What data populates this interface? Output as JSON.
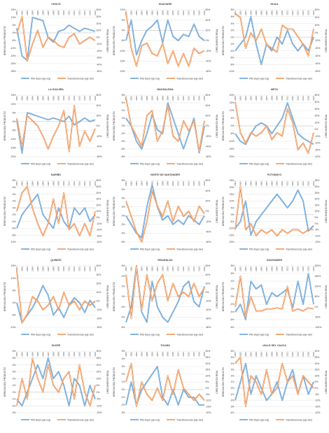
{
  "common": {
    "years": [
      "2001",
      "2002",
      "2003",
      "2004",
      "2005",
      "2006",
      "2007",
      "2008",
      "2009",
      "2010",
      "2011",
      "2012",
      "2013",
      "2014",
      "2015",
      "2016"
    ],
    "legend_left": "PIB Dept (eje izq)",
    "legend_right": "Transferencias (eje der)",
    "ylabel_left": "BRECHA DEL PRODUCTO",
    "ylabel_right": "CRECIMIENTO REAL",
    "colors": {
      "pib": "#5b9bd5",
      "transfer": "#ed7d31",
      "grid": "#d9d9d9",
      "text": "#404040"
    }
  },
  "chart_data": [
    {
      "type": "line",
      "title": "CHOCÓ",
      "left_ticks": [
        "15%",
        "10%",
        "5%",
        "0%",
        "-5%",
        "-10%",
        "-15%",
        "-20%",
        "-25%"
      ],
      "right_ticks": [
        "40%",
        "30%",
        "20%",
        "10%",
        "0%",
        "-10%",
        "-20%",
        "-30%",
        "-40%",
        "-50%"
      ],
      "ylim_left": [
        -25,
        15
      ],
      "ylim_right": [
        -50,
        40
      ],
      "series": [
        {
          "name": "PIB Dept (eje izq)",
          "values": [
            3,
            -15,
            -18,
            10,
            9,
            8,
            -3,
            -6,
            1,
            2,
            5,
            3,
            1,
            3,
            2,
            1
          ]
        },
        {
          "name": "Transferencias (eje der)",
          "values": [
            5,
            30,
            -35,
            -10,
            10,
            -15,
            0,
            -5,
            -12,
            -15,
            0,
            5,
            -10,
            -5,
            0,
            -5
          ]
        }
      ]
    },
    {
      "type": "line",
      "title": "GUAVIARE",
      "left_ticks": [
        "10%",
        "5%",
        "0%",
        "-5%",
        "-10%",
        "-15%",
        "-20%"
      ],
      "right_ticks": [
        "60%",
        "40%",
        "20%",
        "0%",
        "-20%",
        "-40%",
        "-60%"
      ],
      "ylim_left": [
        -20,
        10
      ],
      "ylim_right": [
        -60,
        60
      ],
      "series": [
        {
          "name": "PIB Dept (eje izq)",
          "values": [
            -5,
            5,
            -12,
            -5,
            0,
            2,
            5,
            -6,
            5,
            -3,
            -5,
            -2,
            -3,
            3,
            -3,
            -5
          ]
        },
        {
          "name": "Transferencias (eje der)",
          "values": [
            55,
            -15,
            -50,
            -10,
            -5,
            -25,
            -30,
            -5,
            -45,
            -20,
            -50,
            -25,
            -50,
            -15,
            -25,
            -20
          ]
        }
      ]
    },
    {
      "type": "line",
      "title": "HUILA",
      "left_ticks": [
        "8%",
        "6%",
        "4%",
        "2%",
        "0%",
        "-2%",
        "-4%",
        "-6%",
        "-8%",
        "-10%"
      ],
      "right_ticks": [
        "30%",
        "20%",
        "10%",
        "0%",
        "-10%",
        "-20%",
        "-30%",
        "-40%",
        "-50%"
      ],
      "ylim_left": [
        -10,
        8
      ],
      "ylim_right": [
        -50,
        30
      ],
      "series": [
        {
          "name": "PIB Dept (eje izq)",
          "values": [
            -4,
            -2,
            0,
            6,
            -2,
            -8,
            -2,
            -4,
            0,
            -2,
            2,
            -2,
            -4,
            -2,
            -4,
            0
          ]
        },
        {
          "name": "Transferencias (eje der)",
          "values": [
            25,
            20,
            -20,
            0,
            -10,
            5,
            -15,
            -20,
            -25,
            10,
            5,
            5,
            -5,
            -15,
            -30,
            5
          ]
        }
      ]
    },
    {
      "type": "line",
      "title": "LA GUAJIRA",
      "left_ticks": [
        "15%",
        "10%",
        "5%",
        "0%",
        "-5%",
        "-10%",
        "-15%",
        "-20%"
      ],
      "right_ticks": [
        "60%",
        "40%",
        "20%",
        "0%",
        "-20%",
        "-40%",
        "-60%"
      ],
      "ylim_left": [
        -20,
        15
      ],
      "ylim_right": [
        -60,
        60
      ],
      "series": [
        {
          "name": "PIB Dept (eje izq)",
          "values": [
            1,
            -18,
            5,
            4,
            3,
            2,
            1,
            2,
            1,
            0,
            3,
            -2,
            0,
            2,
            0,
            1
          ]
        },
        {
          "name": "Transferencias (eje der)",
          "values": [
            15,
            -40,
            20,
            10,
            0,
            -20,
            -45,
            -20,
            0,
            30,
            -50,
            40,
            -40,
            -10,
            -30,
            -5
          ]
        }
      ]
    },
    {
      "type": "line",
      "title": "MAGDALENA",
      "left_ticks": [
        "8%",
        "6%",
        "4%",
        "2%",
        "0%",
        "-2%",
        "-4%",
        "-6%",
        "-8%"
      ],
      "right_ticks": [
        "60%",
        "40%",
        "20%",
        "0%",
        "-20%",
        "-40%",
        "-60%"
      ],
      "ylim_left": [
        -8,
        8
      ],
      "ylim_right": [
        -60,
        60
      ],
      "series": [
        {
          "name": "PIB Dept (eje izq)",
          "values": [
            2,
            0,
            -4,
            -6,
            -2,
            3,
            -1,
            -2,
            6,
            2,
            -2,
            -6,
            -2,
            2,
            -7,
            0
          ]
        },
        {
          "name": "Transferencias (eje der)",
          "values": [
            55,
            0,
            -20,
            -40,
            20,
            30,
            -30,
            -10,
            40,
            -20,
            -30,
            10,
            -10,
            10,
            -50,
            10
          ]
        }
      ]
    },
    {
      "type": "line",
      "title": "META",
      "left_ticks": [
        "20%",
        "15%",
        "10%",
        "5%",
        "0%",
        "-5%",
        "-10%",
        "-15%",
        "-20%"
      ],
      "right_ticks": [
        "50%",
        "40%",
        "30%",
        "20%",
        "10%",
        "0%",
        "-10%",
        "-20%",
        "-30%",
        "-40%"
      ],
      "ylim_left": [
        -20,
        20
      ],
      "ylim_right": [
        -40,
        50
      ],
      "series": [
        {
          "name": "PIB Dept (eje izq)",
          "values": [
            -5,
            -10,
            -12,
            -5,
            0,
            2,
            0,
            -5,
            0,
            5,
            15,
            5,
            -5,
            -8,
            -10,
            -12
          ]
        },
        {
          "name": "Transferencias (eje der)",
          "values": [
            40,
            -5,
            -20,
            -5,
            -10,
            -5,
            5,
            -15,
            -5,
            -10,
            30,
            10,
            -30,
            -20,
            -35,
            -5
          ]
        }
      ]
    },
    {
      "type": "line",
      "title": "NARIÑO",
      "left_ticks": [
        "8%",
        "6%",
        "4%",
        "2%",
        "0%",
        "-2%",
        "-4%",
        "-6%",
        "-8%",
        "-10%"
      ],
      "right_ticks": [
        "60%",
        "50%",
        "40%",
        "30%",
        "20%",
        "10%",
        "0%",
        "-10%",
        "-20%",
        "-30%",
        "-40%"
      ],
      "ylim_left": [
        -10,
        8
      ],
      "ylim_right": [
        -40,
        60
      ],
      "series": [
        {
          "name": "PIB Dept (eje izq)",
          "values": [
            -6,
            -2,
            0,
            2,
            4,
            -2,
            -4,
            -6,
            0,
            -4,
            -6,
            0,
            -2,
            0,
            -4,
            -2
          ]
        },
        {
          "name": "Transferencias (eje der)",
          "values": [
            10,
            40,
            50,
            15,
            -10,
            -30,
            -10,
            30,
            -10,
            40,
            -20,
            -10,
            -30,
            -10,
            -30,
            10
          ]
        }
      ]
    },
    {
      "type": "line",
      "title": "NORTE DE SANTANDER",
      "left_ticks": [
        "8%",
        "6%",
        "4%",
        "2%",
        "0%",
        "-2%",
        "-4%",
        "-6%"
      ],
      "right_ticks": [
        "60%",
        "40%",
        "20%",
        "0%",
        "-20%",
        "-40%",
        "-60%"
      ],
      "ylim_left": [
        -6,
        8
      ],
      "ylim_right": [
        -60,
        60
      ],
      "series": [
        {
          "name": "PIB Dept (eje izq)",
          "values": [
            0,
            -2,
            -4,
            -5,
            2,
            7,
            2,
            -1,
            0,
            -2,
            -1,
            -2,
            0,
            -1,
            -2,
            0
          ]
        },
        {
          "name": "Transferencias (eje der)",
          "values": [
            20,
            -10,
            -40,
            -60,
            -20,
            40,
            10,
            -10,
            20,
            -20,
            10,
            -10,
            0,
            -20,
            10,
            -5
          ]
        }
      ]
    },
    {
      "type": "line",
      "title": "PUTUMAYO",
      "left_ticks": [
        "25%",
        "20%",
        "15%",
        "10%",
        "5%",
        "0%",
        "-5%",
        "-10%",
        "-15%",
        "-20%"
      ],
      "right_ticks": [
        "35%",
        "30%",
        "25%",
        "20%",
        "15%",
        "10%",
        "5%",
        "0%",
        "-5%",
        "-10%",
        "-15%"
      ],
      "ylim_left": [
        -20,
        25
      ],
      "ylim_right": [
        -15,
        35
      ],
      "series": [
        {
          "name": "PIB Dept (eje izq)",
          "values": [
            -10,
            -5,
            10,
            -15,
            -5,
            0,
            5,
            10,
            15,
            10,
            5,
            10,
            18,
            10,
            -12,
            -8
          ]
        },
        {
          "name": "Transferencias (eje der)",
          "values": [
            -5,
            30,
            -5,
            0,
            -10,
            -5,
            -8,
            -5,
            -10,
            -5,
            -8,
            -5,
            -5,
            -8,
            -5,
            -5
          ]
        }
      ]
    },
    {
      "type": "line",
      "title": "QUINDÍO",
      "left_ticks": [
        "15%",
        "10%",
        "5%",
        "0%",
        "-5%",
        "-10%"
      ],
      "right_ticks": [
        "40%",
        "30%",
        "20%",
        "10%",
        "0%",
        "-10%",
        "-20%",
        "-30%"
      ],
      "ylim_left": [
        -10,
        15
      ],
      "ylim_right": [
        -30,
        40
      ],
      "series": [
        {
          "name": "PIB Dept (eje izq)",
          "values": [
            0,
            -8,
            -5,
            -2,
            2,
            7,
            3,
            -5,
            -2,
            -6,
            -1,
            2,
            0,
            -4,
            1,
            -2
          ]
        },
        {
          "name": "Transferencias (eje der)",
          "values": [
            35,
            -25,
            -15,
            5,
            0,
            -10,
            -5,
            5,
            -10,
            10,
            -5,
            0,
            -10,
            0,
            -5,
            0
          ]
        }
      ]
    },
    {
      "type": "line",
      "title": "RISARALDA",
      "left_ticks": [
        "6%",
        "4%",
        "2%",
        "0%",
        "-2%",
        "-4%",
        "-6%"
      ],
      "right_ticks": [
        "60%",
        "40%",
        "20%",
        "0%",
        "-20%",
        "-40%",
        "-60%",
        "-80%"
      ],
      "ylim_left": [
        -6,
        6
      ],
      "ylim_right": [
        -80,
        60
      ],
      "series": [
        {
          "name": "PIB Dept (eje izq)",
          "values": [
            -5,
            -2,
            6,
            -3,
            -5,
            3,
            -2,
            -4,
            -5,
            -3,
            -1,
            2,
            3,
            -1,
            -2,
            2
          ]
        },
        {
          "name": "Transferencias (eje der)",
          "values": [
            40,
            -60,
            60,
            -40,
            40,
            -20,
            20,
            40,
            -20,
            20,
            -10,
            0,
            -10,
            20,
            -10,
            10
          ]
        }
      ]
    },
    {
      "type": "line",
      "title": "SANTANDER",
      "left_ticks": [
        "8%",
        "6%",
        "4%",
        "2%",
        "0%",
        "-2%",
        "-4%",
        "-6%",
        "-8%"
      ],
      "right_ticks": [
        "200%",
        "150%",
        "100%",
        "50%",
        "0%",
        "-50%",
        "-100%"
      ],
      "ylim_left": [
        -8,
        8
      ],
      "ylim_right": [
        -100,
        200
      ],
      "series": [
        {
          "name": "PIB Dept (eje izq)",
          "values": [
            -4,
            -2,
            -6,
            4,
            2,
            3,
            -2,
            1,
            0,
            1,
            2,
            -3,
            4,
            -2,
            6,
            -2
          ]
        },
        {
          "name": "Transferencias (eje der)",
          "values": [
            0,
            150,
            -50,
            50,
            -20,
            -20,
            -10,
            -10,
            -5,
            -10,
            100,
            -20,
            -10,
            -20,
            -5,
            -10
          ]
        }
      ]
    },
    {
      "type": "line",
      "title": "SUCRE",
      "left_ticks": [
        "6%",
        "5%",
        "4%",
        "3%",
        "2%",
        "1%",
        "0%",
        "-1%",
        "-2%",
        "-3%"
      ],
      "right_ticks": [
        "30%",
        "25%",
        "20%",
        "15%",
        "10%",
        "5%",
        "0%",
        "-5%",
        "-10%",
        "-15%"
      ],
      "ylim_left": [
        -3,
        6
      ],
      "ylim_right": [
        -15,
        30
      ],
      "series": [
        {
          "name": "PIB Dept (eje izq)",
          "values": [
            -1,
            -2,
            0,
            2,
            4,
            2,
            5,
            2,
            3,
            1,
            -2,
            2,
            1,
            -2,
            1,
            -1
          ]
        },
        {
          "name": "Transferencias (eje der)",
          "values": [
            -10,
            10,
            -5,
            25,
            10,
            0,
            20,
            5,
            0,
            10,
            15,
            -5,
            20,
            0,
            -10,
            5
          ]
        }
      ]
    },
    {
      "type": "line",
      "title": "TOLIMA",
      "left_ticks": [
        "5%",
        "4%",
        "3%",
        "2%",
        "1%",
        "0%",
        "-1%",
        "-2%",
        "-3%"
      ],
      "right_ticks": [
        "30%",
        "25%",
        "20%",
        "15%",
        "10%",
        "5%",
        "0%",
        "-5%",
        "-10%",
        "-15%",
        "-20%"
      ],
      "ylim_left": [
        -3,
        5
      ],
      "ylim_right": [
        -20,
        30
      ],
      "series": [
        {
          "name": "PIB Dept (eje izq)",
          "values": [
            -2,
            1,
            -2,
            0,
            1,
            2,
            3,
            -1,
            -2,
            0,
            -2,
            0,
            -1,
            -1,
            -2,
            -2
          ]
        },
        {
          "name": "Transferencias (eje der)",
          "values": [
            5,
            20,
            -15,
            5,
            -5,
            -10,
            0,
            -10,
            10,
            -5,
            15,
            0,
            -5,
            -10,
            -5,
            -10
          ]
        }
      ]
    },
    {
      "type": "line",
      "title": "VALLE DEL CAUCA",
      "left_ticks": [
        "6%",
        "5%",
        "4%",
        "3%",
        "2%",
        "1%",
        "0%",
        "-1%",
        "-2%",
        "-3%",
        "-4%"
      ],
      "right_ticks": [
        "30%",
        "25%",
        "20%",
        "15%",
        "10%",
        "5%",
        "0%",
        "-5%",
        "-10%",
        "-15%",
        "-20%"
      ],
      "ylim_left": [
        -4,
        6
      ],
      "ylim_right": [
        -20,
        30
      ],
      "series": [
        {
          "name": "PIB Dept (eje izq)",
          "values": [
            -2,
            1,
            4,
            -1,
            2,
            0,
            -2,
            -1,
            1,
            -2,
            1,
            3,
            -1,
            2,
            -1,
            1
          ]
        },
        {
          "name": "Transferencias (eje der)",
          "values": [
            20,
            25,
            -15,
            10,
            5,
            -5,
            15,
            -5,
            0,
            20,
            5,
            10,
            -5,
            10,
            5,
            0
          ]
        }
      ]
    }
  ]
}
